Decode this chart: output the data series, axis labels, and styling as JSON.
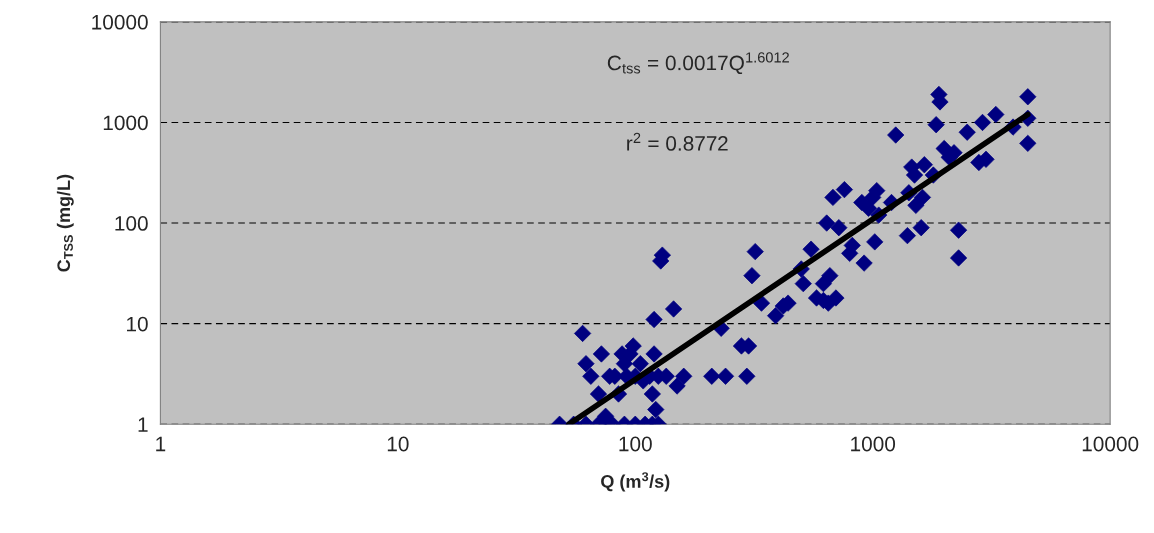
{
  "chart_data": {
    "type": "scatter",
    "xlabel": "Q (m$^{3}$/s)",
    "ylabel": "C$_{TSS}$ (mg/L)",
    "annotations": [
      "C$_{tss}$ = 0.0017Q$^{1.6012}$",
      "r$^{2}$ = 0.8772"
    ],
    "log": "xy",
    "xlim": [
      1,
      10000
    ],
    "ylim": [
      1,
      10000
    ],
    "xticks": [
      1,
      10,
      100,
      1000,
      10000
    ],
    "yticks": [
      1,
      10,
      100,
      1000,
      10000
    ],
    "grid": "y",
    "marker": "diamond",
    "series": [
      {
        "color": "#000080",
        "x": [
          48,
          55,
          62,
          70,
          76,
          80,
          90,
          100,
          110,
          118,
          125,
          60,
          62,
          65,
          70,
          72,
          75,
          78,
          82,
          85,
          88,
          90,
          92,
          95,
          98,
          100,
          105,
          108,
          115,
          118,
          120,
          120,
          122,
          125,
          128,
          130,
          135,
          145,
          150,
          160,
          210,
          230,
          240,
          280,
          295,
          300,
          310,
          320,
          340,
          390,
          420,
          440,
          500,
          510,
          550,
          580,
          620,
          620,
          640,
          650,
          660,
          680,
          700,
          720,
          760,
          800,
          820,
          900,
          920,
          960,
          1000,
          1020,
          1040,
          1060,
          1200,
          1250,
          1400,
          1420,
          1460,
          1500,
          1520,
          1600,
          1620,
          1650,
          1800,
          1850,
          1900,
          1920,
          2000,
          2100,
          2200,
          2300,
          2300,
          2500,
          2800,
          2900,
          3000,
          3300,
          3900,
          4500,
          4500,
          4500
        ],
        "values": [
          1,
          1,
          1,
          1,
          1,
          1,
          1,
          1,
          1,
          1,
          1,
          8,
          4,
          3,
          2,
          5,
          1.2,
          3,
          3,
          2,
          5,
          4,
          3,
          5,
          6,
          3,
          4,
          2.7,
          3,
          2,
          5,
          11,
          1.4,
          3,
          42,
          48,
          3,
          14,
          2.4,
          3,
          3,
          9,
          3,
          6,
          3,
          6,
          30,
          52,
          16,
          12,
          15,
          16,
          35,
          25,
          55,
          18,
          17,
          25,
          100,
          16,
          30,
          180,
          18,
          90,
          215,
          50,
          60,
          160,
          40,
          140,
          180,
          65,
          210,
          120,
          160,
          750,
          75,
          200,
          360,
          300,
          150,
          90,
          180,
          380,
          300,
          950,
          1900,
          1600,
          550,
          450,
          500,
          85,
          45,
          800,
          400,
          1000,
          430,
          1200,
          900,
          1800,
          1100,
          620
        ]
      },
      {
        "type": "line",
        "color": "#000000",
        "marker": "none",
        "x": [
          52.5,
          4500
        ],
        "values": [
          1,
          1200
        ]
      }
    ]
  }
}
